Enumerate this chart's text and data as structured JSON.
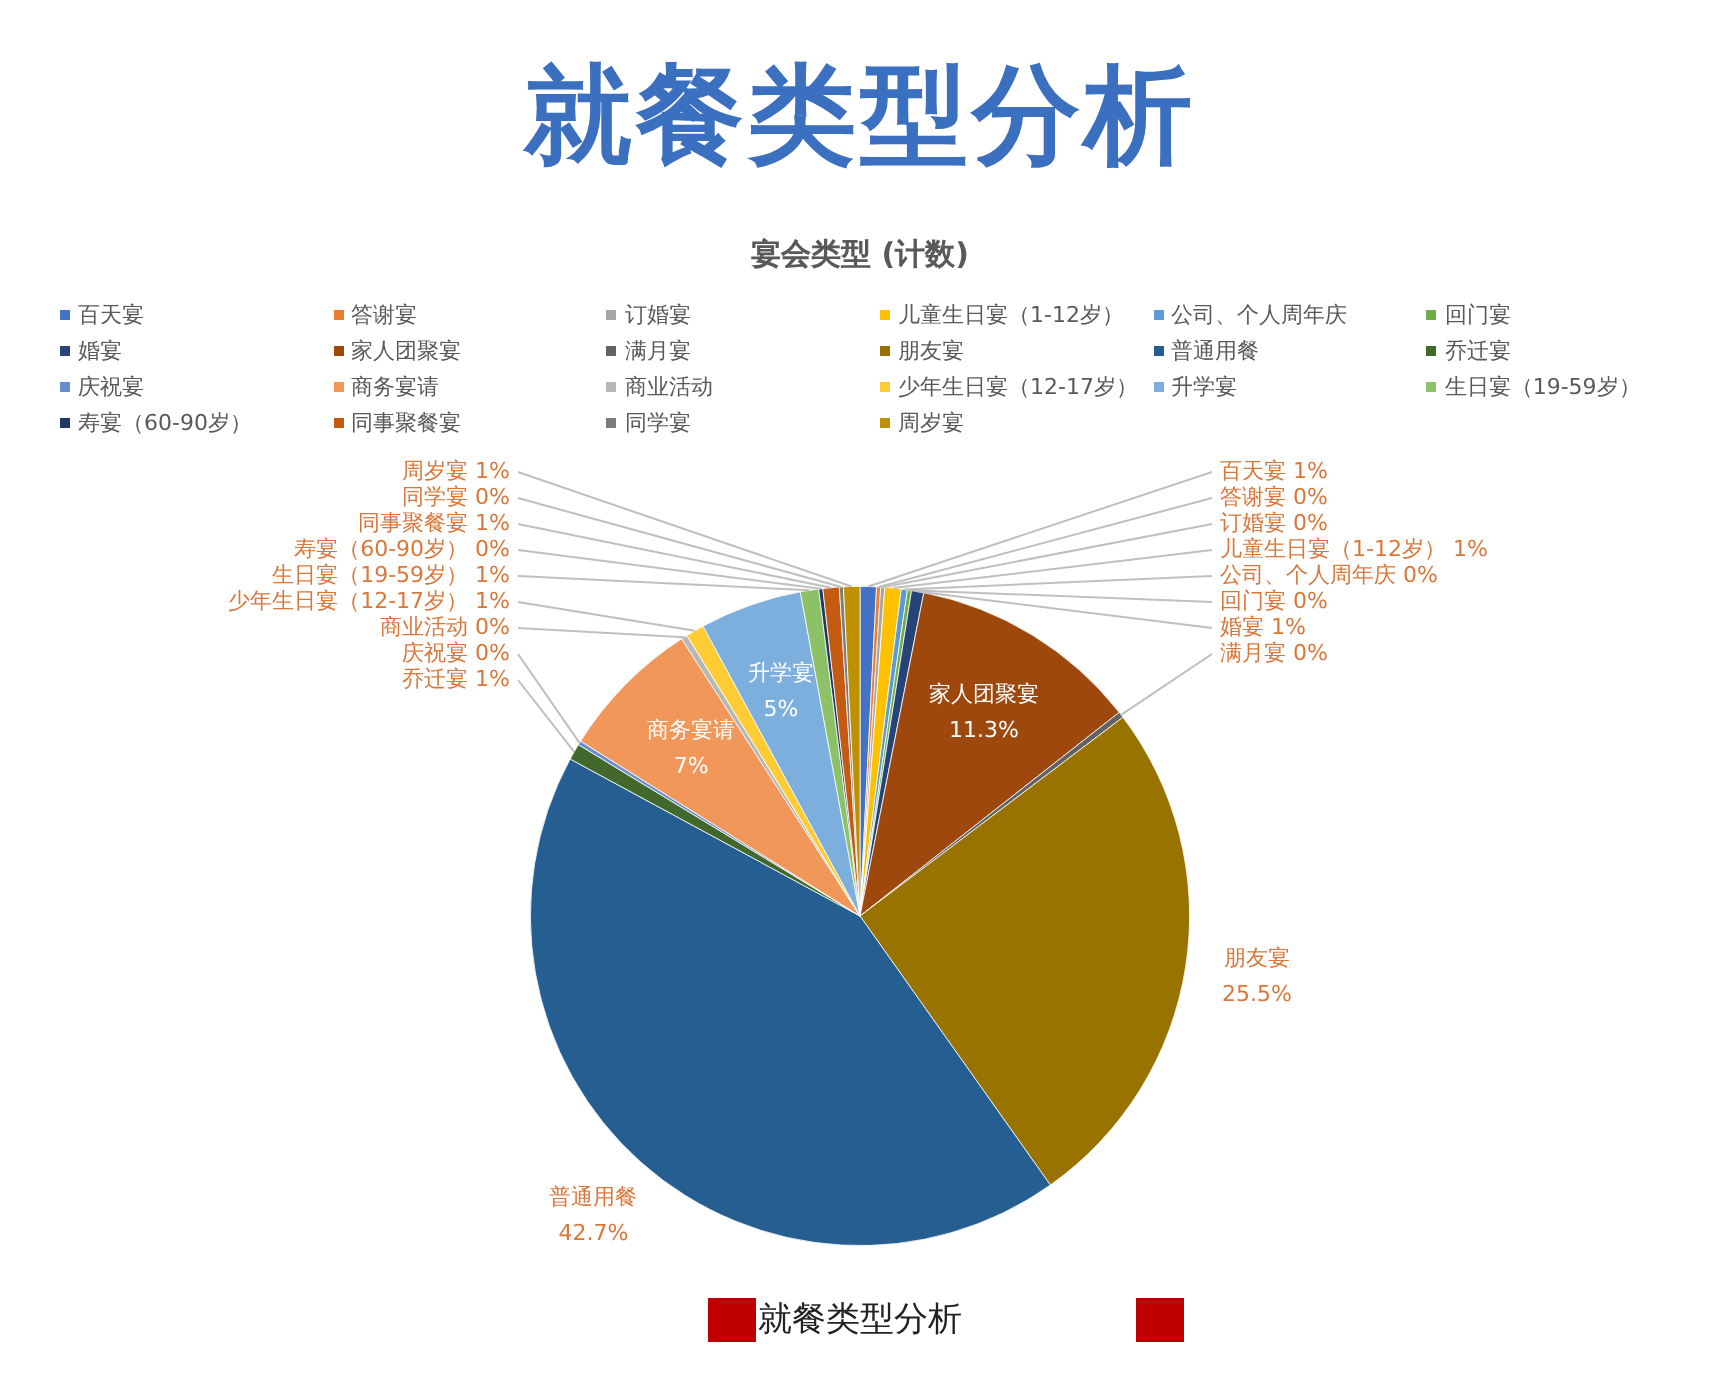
{
  "chart_data": {
    "type": "pie",
    "title": "就餐类型分析",
    "subtitle": "宴会类型 (计数)",
    "categories": [
      "百天宴",
      "答谢宴",
      "订婚宴",
      "儿童生日宴（1-12岁）",
      "公司、个人周年庆",
      "回门宴",
      "婚宴",
      "家人团聚宴",
      "满月宴",
      "朋友宴",
      "普通用餐",
      "乔迁宴",
      "庆祝宴",
      "商务宴请",
      "商业活动",
      "少年生日宴（12-17岁）",
      "升学宴",
      "生日宴（19-59岁）",
      "寿宴（60-90岁）",
      "同事聚餐宴",
      "同学宴",
      "周岁宴"
    ],
    "values": [
      0.8,
      0.2,
      0.2,
      0.8,
      0.3,
      0.2,
      0.6,
      11.3,
      0.3,
      25.5,
      42.7,
      0.8,
      0.2,
      7,
      0.3,
      0.9,
      5,
      0.9,
      0.2,
      0.8,
      0.2,
      0.8
    ],
    "value_labels": [
      "1%",
      "0%",
      "0%",
      "1%",
      "0%",
      "0%",
      "1%",
      "11.3%",
      "0%",
      "25.5%",
      "42.7%",
      "1%",
      "0%",
      "7%",
      "0%",
      "1%",
      "5%",
      "1%",
      "0%",
      "1%",
      "0%",
      "1%"
    ],
    "colors": [
      "#4472c4",
      "#ed7d31",
      "#a5a5a5",
      "#ffc000",
      "#5b9bd5",
      "#70ad47",
      "#264478",
      "#9e480e",
      "#636363",
      "#997300",
      "#255e91",
      "#43682b",
      "#698ed0",
      "#f1975a",
      "#b7b7b7",
      "#ffcd33",
      "#7cafdd",
      "#8cc168",
      "#203864",
      "#c55a11",
      "#7b7b7b",
      "#bf9000"
    ],
    "legend": "top",
    "annotations": [
      "就餐类型分析"
    ]
  }
}
